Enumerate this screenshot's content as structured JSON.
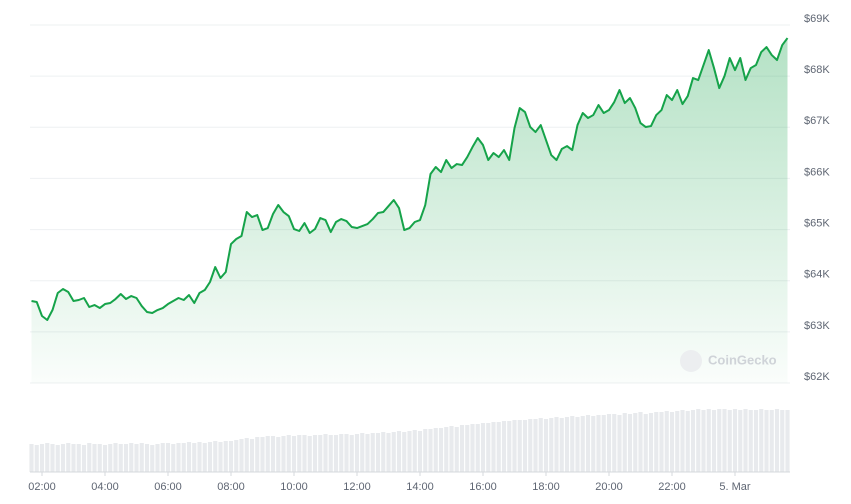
{
  "chart_data": {
    "type": "line",
    "x": [
      100,
      110,
      120,
      130,
      140,
      150,
      160,
      170,
      180,
      190,
      200,
      210,
      220,
      230,
      240,
      250,
      260,
      270,
      280,
      290,
      300,
      310,
      320,
      330,
      340,
      350,
      360,
      370,
      380,
      390,
      400,
      410,
      420,
      430,
      440,
      450,
      460,
      470,
      480,
      490,
      500,
      510,
      520,
      530,
      540,
      550,
      560,
      570,
      580,
      590,
      600,
      610,
      620,
      630,
      640,
      650,
      660,
      670,
      680,
      690,
      700,
      710,
      720,
      730,
      740,
      750,
      760,
      770,
      780,
      790,
      800,
      810,
      820,
      830,
      840,
      850,
      860,
      870,
      880,
      890,
      900,
      910,
      920,
      930,
      940,
      950,
      960,
      970,
      980,
      990,
      1000,
      1010,
      1020,
      1030,
      1040,
      1050,
      1060,
      1070,
      1080,
      1090,
      1100,
      1110,
      1120,
      1130,
      1140,
      1150,
      1160,
      1170,
      1180,
      1190,
      1200,
      1210,
      1220,
      1230,
      1240,
      1250,
      1260,
      1270,
      1280,
      1290,
      1300,
      1310,
      1320,
      1330,
      1340,
      1350,
      1360,
      1370,
      1380,
      1390,
      1400,
      1410,
      1420,
      1430,
      1440,
      1450,
      1460,
      1470,
      1480,
      1490,
      1500,
      1510,
      1520,
      1530,
      1540
    ],
    "xlim": [
      100,
      1540
    ],
    "xticks": [
      {
        "value": 120,
        "label": "02:00"
      },
      {
        "value": 240,
        "label": "04:00"
      },
      {
        "value": 360,
        "label": "06:00"
      },
      {
        "value": 480,
        "label": "08:00"
      },
      {
        "value": 600,
        "label": "10:00"
      },
      {
        "value": 720,
        "label": "12:00"
      },
      {
        "value": 840,
        "label": "14:00"
      },
      {
        "value": 960,
        "label": "16:00"
      },
      {
        "value": 1080,
        "label": "18:00"
      },
      {
        "value": 1200,
        "label": "20:00"
      },
      {
        "value": 1320,
        "label": "22:00"
      },
      {
        "value": 1440,
        "label": "5. Mar"
      }
    ],
    "ylim": [
      62000,
      69000
    ],
    "yticks": [
      {
        "value": 62000,
        "label": "$62K"
      },
      {
        "value": 63000,
        "label": "$63K"
      },
      {
        "value": 64000,
        "label": "$64K"
      },
      {
        "value": 65000,
        "label": "$65K"
      },
      {
        "value": 66000,
        "label": "$66K"
      },
      {
        "value": 67000,
        "label": "$67K"
      },
      {
        "value": 68000,
        "label": "$68K"
      },
      {
        "value": 69000,
        "label": "$69K"
      }
    ],
    "grid": true,
    "volume_lim": [
      0,
      70
    ],
    "watermark": "CoinGecko",
    "series": [
      {
        "color": "#16a34a",
        "values": [
          63603,
          63584,
          63310,
          63232,
          63427,
          63760,
          63838,
          63779,
          63603,
          63623,
          63662,
          63486,
          63525,
          63466,
          63544,
          63564,
          63642,
          63740,
          63642,
          63701,
          63662,
          63505,
          63388,
          63369,
          63427,
          63466,
          63544,
          63603,
          63662,
          63623,
          63720,
          63564,
          63760,
          63818,
          63975,
          64268,
          64053,
          64170,
          64717,
          64815,
          64874,
          65343,
          65245,
          65284,
          64991,
          65030,
          65304,
          65480,
          65343,
          65265,
          65011,
          64972,
          65128,
          64933,
          65011,
          65226,
          65187,
          64952,
          65148,
          65206,
          65167,
          65050,
          65030,
          65069,
          65108,
          65206,
          65324,
          65343,
          65460,
          65578,
          65421,
          64991,
          65030,
          65148,
          65187,
          65480,
          66086,
          66223,
          66125,
          66360,
          66203,
          66281,
          66262,
          66418,
          66614,
          66790,
          66653,
          66360,
          66497,
          66418,
          66555,
          66360,
          66985,
          67376,
          67298,
          67005,
          66907,
          67044,
          66751,
          66457,
          66360,
          66575,
          66633,
          66555,
          67044,
          67279,
          67181,
          67239,
          67435,
          67279,
          67337,
          67494,
          67728,
          67474,
          67572,
          67376,
          67083,
          67005,
          67024,
          67239,
          67337,
          67630,
          67533,
          67728,
          67454,
          67611,
          67963,
          67924,
          68217,
          68510,
          68158,
          67767,
          68002,
          68354,
          68119,
          68354,
          67924,
          68158,
          68217,
          68471,
          68569,
          68412,
          68315,
          68608,
          68745
        ]
      },
      {
        "type": "bar",
        "color": "#e8eaed",
        "values": [
          28,
          27,
          28,
          29,
          28,
          27,
          28,
          29,
          28,
          28,
          27,
          29,
          28,
          28,
          27,
          28,
          29,
          28,
          28,
          29,
          28,
          29,
          28,
          27,
          28,
          29,
          29,
          28,
          29,
          29,
          30,
          29,
          30,
          29,
          30,
          31,
          30,
          31,
          31,
          32,
          33,
          34,
          33,
          35,
          35,
          36,
          36,
          35,
          36,
          37,
          36,
          37,
          37,
          36,
          37,
          37,
          38,
          37,
          37,
          38,
          38,
          37,
          38,
          39,
          38,
          39,
          39,
          40,
          39,
          40,
          41,
          40,
          41,
          42,
          41,
          43,
          43,
          44,
          44,
          45,
          46,
          45,
          47,
          47,
          48,
          48,
          49,
          49,
          50,
          50,
          51,
          51,
          52,
          52,
          52,
          53,
          53,
          54,
          53,
          54,
          55,
          54,
          55,
          56,
          55,
          56,
          57,
          56,
          57,
          57,
          58,
          58,
          57,
          59,
          58,
          59,
          60,
          58,
          59,
          60,
          60,
          61,
          60,
          61,
          62,
          61,
          62,
          63,
          62,
          63,
          62,
          63,
          63,
          62,
          63,
          62,
          63,
          62,
          62,
          63,
          62,
          62,
          63,
          62,
          62
        ]
      }
    ]
  }
}
